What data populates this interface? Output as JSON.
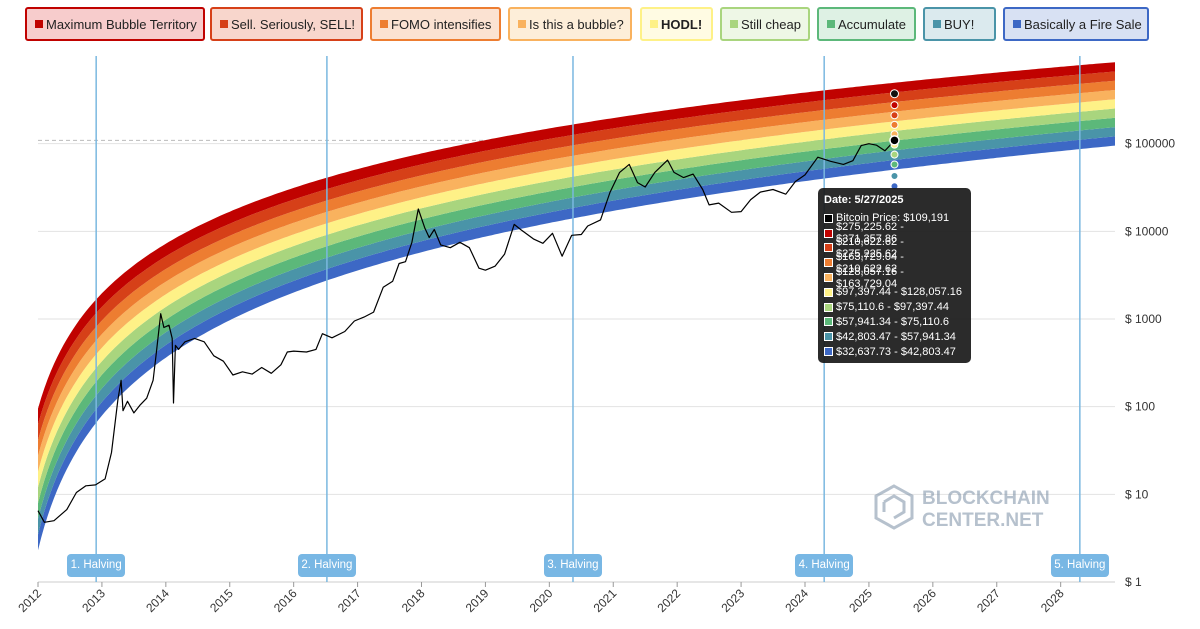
{
  "legend": [
    {
      "label": "Maximum Bubble Territory",
      "color": "#c00200",
      "bg": "#f7cccc",
      "bold": false
    },
    {
      "label": "Sell. Seriously, SELL!",
      "color": "#d64018",
      "bg": "#f8d6cc",
      "bold": false
    },
    {
      "label": "FOMO intensifies",
      "color": "#ed7d31",
      "bg": "#fbe2d2",
      "bold": false
    },
    {
      "label": "Is this a bubble?",
      "color": "#f9b25e",
      "bg": "#fdeed9",
      "bold": false
    },
    {
      "label": "HODL!",
      "color": "#fef187",
      "bg": "#fffbe3",
      "bold": true
    },
    {
      "label": "Still cheap",
      "color": "#a9d57e",
      "bg": "#eef7e6",
      "bold": false
    },
    {
      "label": "Accumulate",
      "color": "#5cb87a",
      "bg": "#def1e4",
      "bold": false
    },
    {
      "label": "BUY!",
      "color": "#4a94a8",
      "bg": "#dbeaee",
      "bold": false
    },
    {
      "label": "Basically a Fire Sale",
      "color": "#3d68c5",
      "bg": "#d8e1f3",
      "bold": false
    }
  ],
  "tooltip": {
    "title": "Date: 5/27/2025",
    "rows": [
      {
        "text": "Bitcoin Price: $109,191",
        "color": "#000000"
      },
      {
        "text": "$275,225.62 - $371,357.86",
        "color": "#c00200"
      },
      {
        "text": "$210,622.62 - $275,225.62",
        "color": "#d64018"
      },
      {
        "text": "$163,729.04 - $210,622.62",
        "color": "#ed7d31"
      },
      {
        "text": "$128,057.16 - $163,729.04",
        "color": "#f9b25e"
      },
      {
        "text": "$97,397.44 - $128,057.16",
        "color": "#fef187"
      },
      {
        "text": "$75,110.6 - $97,397.44",
        "color": "#a9d57e"
      },
      {
        "text": "$57,941.34 - $75,110.6",
        "color": "#5cb87a"
      },
      {
        "text": "$42,803.47 - $57,941.34",
        "color": "#4a94a8"
      },
      {
        "text": "$32,637.73 - $42,803.47",
        "color": "#3d68c5"
      }
    ]
  },
  "watermark": {
    "line1": "BLOCKCHAIN",
    "line2": "CENTER.NET"
  },
  "chart_data": {
    "type": "line",
    "title": "",
    "y_scale": "log",
    "ylim": [
      1,
      1000000
    ],
    "xlim": [
      2012.0,
      2028.85
    ],
    "y_ticks": [
      {
        "value": 1,
        "label": "$ 1"
      },
      {
        "value": 10,
        "label": "$ 10"
      },
      {
        "value": 100,
        "label": "$ 100"
      },
      {
        "value": 1000,
        "label": "$ 1000"
      },
      {
        "value": 10000,
        "label": "$ 10000"
      },
      {
        "value": 100000,
        "label": "$ 100000"
      }
    ],
    "x_ticks": [
      "2012",
      "2013",
      "2014",
      "2015",
      "2016",
      "2017",
      "2018",
      "2019",
      "2020",
      "2021",
      "2022",
      "2023",
      "2024",
      "2025",
      "2026",
      "2027",
      "2028"
    ],
    "grid": true,
    "dashed_reference": 109191,
    "halvings": [
      {
        "label": "1. Halving",
        "date": 2012.91
      },
      {
        "label": "2. Halving",
        "date": 2016.52
      },
      {
        "label": "3. Halving",
        "date": 2020.37
      },
      {
        "label": "4. Halving",
        "date": 2024.3
      },
      {
        "label": "5. Halving",
        "date": 2028.3
      }
    ],
    "band_edges_at_tooltip": [
      32637.73,
      42803.47,
      57941.34,
      75110.6,
      97397.44,
      128057.16,
      163729.04,
      210622.62,
      275225.62,
      371357.86
    ],
    "bands_at_start": {
      "date": 2012.0,
      "lower": 2.3,
      "upper": 95
    },
    "bands_end": {
      "date": 2028.85,
      "lower": 95000,
      "upper": 850000
    },
    "band_colors": [
      "#3d68c5",
      "#4a94a8",
      "#5cb87a",
      "#a9d57e",
      "#fef187",
      "#f9b25e",
      "#ed7d31",
      "#d64018",
      "#c00200"
    ],
    "series": [
      {
        "name": "Bitcoin Price",
        "color": "#000000",
        "points": [
          [
            2012.0,
            6.5
          ],
          [
            2012.1,
            4.8
          ],
          [
            2012.25,
            5.0
          ],
          [
            2012.45,
            6.7
          ],
          [
            2012.6,
            10.5
          ],
          [
            2012.75,
            12.5
          ],
          [
            2012.9,
            12.8
          ],
          [
            2013.05,
            15
          ],
          [
            2013.15,
            30
          ],
          [
            2013.25,
            120
          ],
          [
            2013.3,
            200
          ],
          [
            2013.33,
            90
          ],
          [
            2013.4,
            115
          ],
          [
            2013.5,
            85
          ],
          [
            2013.6,
            105
          ],
          [
            2013.7,
            125
          ],
          [
            2013.8,
            200
          ],
          [
            2013.85,
            400
          ],
          [
            2013.92,
            1150
          ],
          [
            2013.97,
            800
          ],
          [
            2014.05,
            850
          ],
          [
            2014.1,
            600
          ],
          [
            2014.12,
            110
          ],
          [
            2014.15,
            500
          ],
          [
            2014.2,
            450
          ],
          [
            2014.3,
            550
          ],
          [
            2014.45,
            600
          ],
          [
            2014.6,
            550
          ],
          [
            2014.75,
            380
          ],
          [
            2014.9,
            330
          ],
          [
            2015.05,
            230
          ],
          [
            2015.2,
            250
          ],
          [
            2015.35,
            235
          ],
          [
            2015.5,
            280
          ],
          [
            2015.65,
            240
          ],
          [
            2015.8,
            300
          ],
          [
            2015.9,
            420
          ],
          [
            2016.0,
            430
          ],
          [
            2016.2,
            420
          ],
          [
            2016.35,
            450
          ],
          [
            2016.45,
            680
          ],
          [
            2016.6,
            610
          ],
          [
            2016.8,
            720
          ],
          [
            2016.95,
            950
          ],
          [
            2017.1,
            1050
          ],
          [
            2017.25,
            1200
          ],
          [
            2017.4,
            2300
          ],
          [
            2017.55,
            2700
          ],
          [
            2017.65,
            4300
          ],
          [
            2017.75,
            4500
          ],
          [
            2017.85,
            7500
          ],
          [
            2017.95,
            18000
          ],
          [
            2018.05,
            11000
          ],
          [
            2018.12,
            8500
          ],
          [
            2018.2,
            10500
          ],
          [
            2018.3,
            7000
          ],
          [
            2018.45,
            6500
          ],
          [
            2018.6,
            7500
          ],
          [
            2018.75,
            6500
          ],
          [
            2018.9,
            3800
          ],
          [
            2019.0,
            3600
          ],
          [
            2019.15,
            4000
          ],
          [
            2019.3,
            5500
          ],
          [
            2019.45,
            12000
          ],
          [
            2019.55,
            10500
          ],
          [
            2019.75,
            8200
          ],
          [
            2019.9,
            7300
          ],
          [
            2020.05,
            9500
          ],
          [
            2020.2,
            5200
          ],
          [
            2020.35,
            9000
          ],
          [
            2020.5,
            9200
          ],
          [
            2020.6,
            11500
          ],
          [
            2020.8,
            13500
          ],
          [
            2020.95,
            28000
          ],
          [
            2021.1,
            47000
          ],
          [
            2021.25,
            58000
          ],
          [
            2021.38,
            36000
          ],
          [
            2021.5,
            32000
          ],
          [
            2021.65,
            47000
          ],
          [
            2021.85,
            65000
          ],
          [
            2021.95,
            47000
          ],
          [
            2022.1,
            41000
          ],
          [
            2022.25,
            45000
          ],
          [
            2022.4,
            30000
          ],
          [
            2022.5,
            20000
          ],
          [
            2022.65,
            21000
          ],
          [
            2022.85,
            16500
          ],
          [
            2023.0,
            16800
          ],
          [
            2023.15,
            23000
          ],
          [
            2023.3,
            28000
          ],
          [
            2023.5,
            30000
          ],
          [
            2023.7,
            26500
          ],
          [
            2023.85,
            37000
          ],
          [
            2024.0,
            44000
          ],
          [
            2024.2,
            70000
          ],
          [
            2024.4,
            63000
          ],
          [
            2024.6,
            58000
          ],
          [
            2024.75,
            64000
          ],
          [
            2024.88,
            95000
          ],
          [
            2025.0,
            100000
          ],
          [
            2025.12,
            96000
          ],
          [
            2025.25,
            83000
          ],
          [
            2025.32,
            94000
          ],
          [
            2025.4,
            109191
          ]
        ]
      }
    ],
    "highlight_marker": {
      "date": 2025.4,
      "value": 109191
    }
  }
}
